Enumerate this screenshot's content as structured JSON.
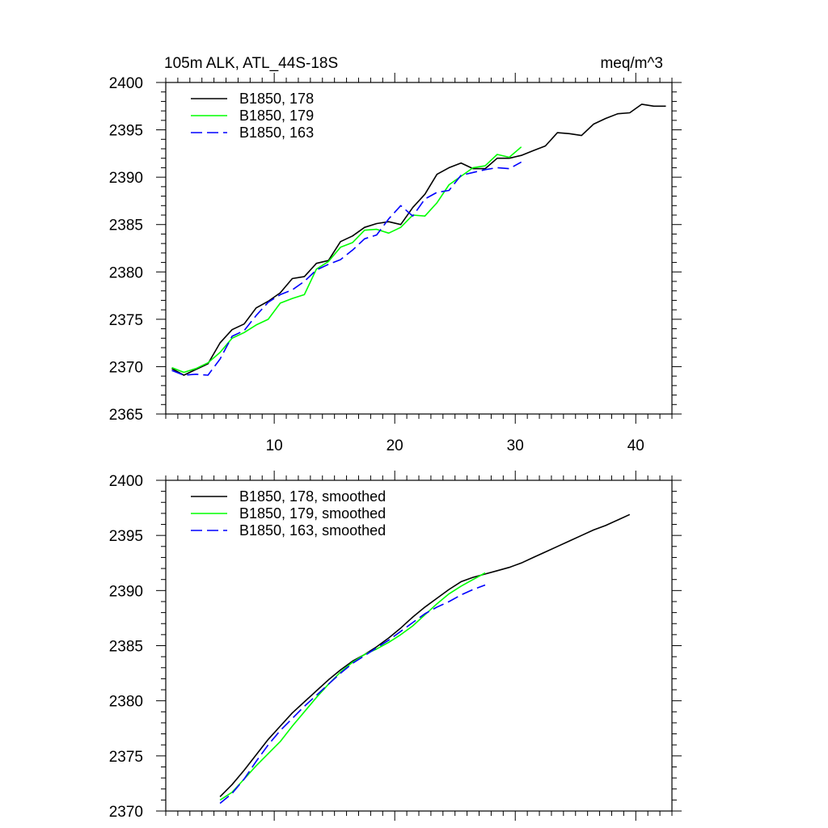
{
  "chart_data": [
    {
      "type": "line",
      "title": "105m ALK, ATL_44S-18S",
      "units": "meq/m^3",
      "xlim": [
        1,
        43
      ],
      "ylim": [
        2365,
        2400
      ],
      "xticks": [
        10,
        20,
        30,
        40
      ],
      "yticks": [
        2365,
        2370,
        2375,
        2380,
        2385,
        2390,
        2395,
        2400
      ],
      "xticklabels": [
        "10",
        "20",
        "30",
        "40"
      ],
      "yticklabels": [
        "2365",
        "2370",
        "2375",
        "2380",
        "2385",
        "2390",
        "2395",
        "2400"
      ],
      "legend_position": "top-left",
      "series": [
        {
          "name": "B1850, 178",
          "color": "#000000",
          "dash": "solid",
          "x": [
            1.5,
            2.5,
            3.5,
            4.5,
            5.5,
            6.5,
            7.5,
            8.5,
            9.5,
            10.5,
            11.5,
            12.5,
            13.5,
            14.5,
            15.5,
            16.5,
            17.5,
            18.5,
            19.5,
            20.5,
            21.5,
            22.5,
            23.5,
            24.5,
            25.5,
            26.5,
            27.5,
            28.5,
            29.5,
            30.5,
            31.5,
            32.5,
            33.5,
            34.5,
            35.5,
            36.5,
            37.5,
            38.5,
            39.5,
            40.5,
            41.5,
            42.5
          ],
          "y": [
            2369.8,
            2369.1,
            2369.7,
            2370.3,
            2372.5,
            2373.9,
            2374.5,
            2376.2,
            2376.9,
            2377.8,
            2379.3,
            2379.5,
            2380.9,
            2381.2,
            2383.2,
            2383.8,
            2384.7,
            2385.1,
            2385.3,
            2385.0,
            2386.8,
            2388.2,
            2390.3,
            2391.0,
            2391.5,
            2390.9,
            2390.9,
            2392.0,
            2392.0,
            2392.3,
            2392.8,
            2393.3,
            2394.7,
            2394.6,
            2394.4,
            2395.6,
            2396.2,
            2396.7,
            2396.8,
            2397.7,
            2397.5,
            2397.5
          ]
        },
        {
          "name": "B1850, 179",
          "color": "#00ff00",
          "dash": "solid",
          "x": [
            1.5,
            2.5,
            3.5,
            4.5,
            5.5,
            6.5,
            7.5,
            8.5,
            9.5,
            10.5,
            11.5,
            12.5,
            13.5,
            14.5,
            15.5,
            16.5,
            17.5,
            18.5,
            19.5,
            20.5,
            21.5,
            22.5,
            23.5,
            24.5,
            25.5,
            26.5,
            27.5,
            28.5,
            29.5,
            30.5
          ],
          "y": [
            2369.9,
            2369.4,
            2369.8,
            2370.4,
            2371.5,
            2373.0,
            2373.6,
            2374.4,
            2375.0,
            2376.7,
            2377.2,
            2377.6,
            2380.3,
            2381.1,
            2382.6,
            2383.1,
            2384.4,
            2384.5,
            2384.1,
            2384.7,
            2386.0,
            2385.9,
            2387.3,
            2389.2,
            2390.1,
            2391.0,
            2391.2,
            2392.4,
            2392.1,
            2393.2
          ]
        },
        {
          "name": "B1850, 163",
          "color": "#0000ff",
          "dash": "dashed",
          "x": [
            1.5,
            2.5,
            3.5,
            4.5,
            5.5,
            6.5,
            7.5,
            8.5,
            9.5,
            10.5,
            11.5,
            12.5,
            13.5,
            14.5,
            15.5,
            16.5,
            17.5,
            18.5,
            19.5,
            20.5,
            21.5,
            22.5,
            23.5,
            24.5,
            25.5,
            26.5,
            27.5,
            28.5,
            29.5,
            30.5
          ],
          "y": [
            2369.6,
            2369.1,
            2369.2,
            2369.1,
            2370.8,
            2373.2,
            2373.8,
            2375.4,
            2376.8,
            2377.6,
            2378.1,
            2379.0,
            2380.2,
            2380.8,
            2381.3,
            2382.3,
            2383.5,
            2383.9,
            2385.6,
            2387.0,
            2385.9,
            2387.7,
            2388.4,
            2388.6,
            2390.2,
            2390.5,
            2390.8,
            2391.0,
            2390.9,
            2391.6
          ]
        }
      ]
    },
    {
      "type": "line",
      "title": "",
      "xlim": [
        1,
        43
      ],
      "ylim": [
        2370,
        2400
      ],
      "xticks": [
        10,
        20,
        30,
        40
      ],
      "yticks": [
        2370,
        2375,
        2380,
        2385,
        2390,
        2395,
        2400
      ],
      "xticklabels": [],
      "yticklabels": [
        "2370",
        "2375",
        "2380",
        "2385",
        "2390",
        "2395",
        "2400"
      ],
      "legend_position": "top-left",
      "series": [
        {
          "name": "B1850, 178, smoothed",
          "color": "#000000",
          "dash": "solid",
          "x": [
            5.5,
            6.5,
            7.5,
            8.5,
            9.5,
            10.5,
            11.5,
            12.5,
            13.5,
            14.5,
            15.5,
            16.5,
            17.5,
            18.5,
            19.5,
            20.5,
            21.5,
            22.5,
            23.5,
            24.5,
            25.5,
            26.5,
            27.5,
            28.5,
            29.5,
            30.5,
            31.5,
            32.5,
            33.5,
            34.5,
            35.5,
            36.5,
            37.5,
            38.5,
            39.5
          ],
          "y": [
            2371.3,
            2372.4,
            2373.7,
            2375.1,
            2376.5,
            2377.7,
            2378.9,
            2379.9,
            2380.9,
            2381.9,
            2382.8,
            2383.6,
            2384.2,
            2384.9,
            2385.7,
            2386.6,
            2387.6,
            2388.5,
            2389.3,
            2390.1,
            2390.8,
            2391.2,
            2391.5,
            2391.8,
            2392.1,
            2392.5,
            2393.0,
            2393.5,
            2394.0,
            2394.5,
            2395.0,
            2395.5,
            2395.9,
            2396.4,
            2396.9
          ]
        },
        {
          "name": "B1850, 179, smoothed",
          "color": "#00ff00",
          "dash": "solid",
          "x": [
            5.5,
            6.5,
            7.5,
            8.5,
            9.5,
            10.5,
            11.5,
            12.5,
            13.5,
            14.5,
            15.5,
            16.5,
            17.5,
            18.5,
            19.5,
            20.5,
            21.5,
            22.5,
            23.5,
            24.5,
            25.5,
            26.5,
            27.5
          ],
          "y": [
            2371.0,
            2371.7,
            2372.9,
            2374.1,
            2375.2,
            2376.3,
            2377.7,
            2379.0,
            2380.3,
            2381.5,
            2382.6,
            2383.5,
            2384.2,
            2384.7,
            2385.3,
            2386.0,
            2386.8,
            2387.8,
            2388.8,
            2389.7,
            2390.4,
            2391.0,
            2391.6
          ]
        },
        {
          "name": "B1850, 163, smoothed",
          "color": "#0000ff",
          "dash": "dashed",
          "x": [
            5.5,
            6.5,
            7.5,
            8.5,
            9.5,
            10.5,
            11.5,
            12.5,
            13.5,
            14.5,
            15.5,
            16.5,
            17.5,
            18.5,
            19.5,
            20.5,
            21.5,
            22.5,
            23.5,
            24.5,
            25.5,
            26.5,
            27.5
          ],
          "y": [
            2370.7,
            2371.6,
            2372.9,
            2374.5,
            2376.0,
            2377.3,
            2378.4,
            2379.5,
            2380.5,
            2381.5,
            2382.5,
            2383.4,
            2384.1,
            2384.8,
            2385.5,
            2386.3,
            2387.1,
            2387.9,
            2388.5,
            2389.0,
            2389.6,
            2390.1,
            2390.5
          ]
        }
      ]
    }
  ]
}
